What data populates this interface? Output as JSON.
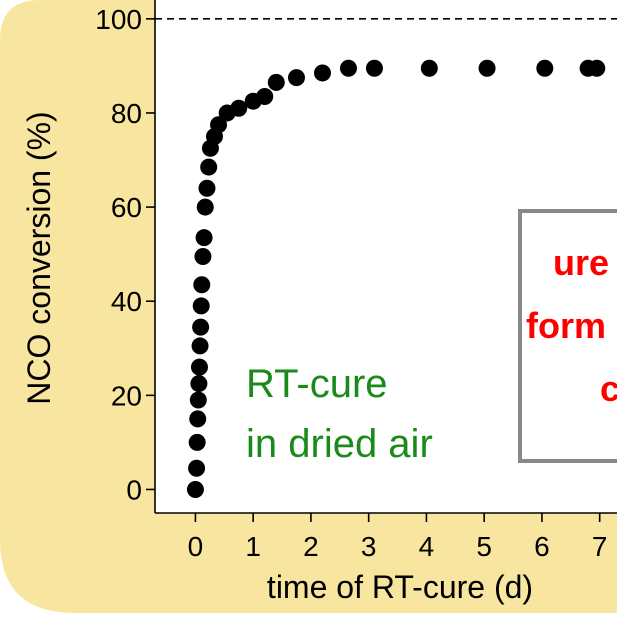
{
  "chart_data": {
    "type": "scatter",
    "xlabel": "time of RT-cure (d)",
    "ylabel": "NCO conversion (%)",
    "xlim": [
      -0.7,
      7.3
    ],
    "ylim": [
      -5,
      104
    ],
    "x_ticks": [
      0,
      1,
      2,
      3,
      4,
      5,
      6,
      7
    ],
    "y_ticks": [
      0,
      20,
      40,
      60,
      80,
      100
    ],
    "reference_line": {
      "y": 100,
      "style": "dashed"
    },
    "grid": false,
    "series": [
      {
        "color": "#000000",
        "x": [
          0.0,
          0.02,
          0.03,
          0.04,
          0.05,
          0.06,
          0.07,
          0.08,
          0.09,
          0.1,
          0.11,
          0.13,
          0.15,
          0.17,
          0.2,
          0.23,
          0.26,
          0.33,
          0.4,
          0.55,
          0.75,
          1.0,
          1.2,
          1.4,
          1.75,
          2.2,
          2.65,
          3.1,
          4.05,
          5.05,
          6.05,
          6.8,
          6.95
        ],
        "y": [
          0,
          4.5,
          10,
          15,
          19,
          22.5,
          26,
          30.5,
          34.5,
          39,
          43.5,
          49.5,
          53.5,
          60,
          64,
          68.5,
          72.5,
          75,
          77.5,
          80,
          81,
          82.5,
          83.5,
          86.5,
          87.5,
          88.5,
          89.5,
          89.5,
          89.5,
          89.5,
          89.5,
          89.5,
          89.5
        ]
      }
    ],
    "annotations": [
      {
        "text": "RT-cure",
        "color": "#1a8a1a"
      },
      {
        "text": "in dried air",
        "color": "#1a8a1a"
      },
      {
        "text": "ure",
        "color": "#ff0000"
      },
      {
        "text": "form",
        "color": "#ff0000"
      },
      {
        "text": "c",
        "color": "#ff0000"
      }
    ]
  },
  "colors": {
    "background_panel": "#f8e6a0",
    "axis": "#000000",
    "markers": "#000000",
    "green_text": "#1a8a1a",
    "red_text": "#ff0000",
    "box_border": "#888888"
  }
}
